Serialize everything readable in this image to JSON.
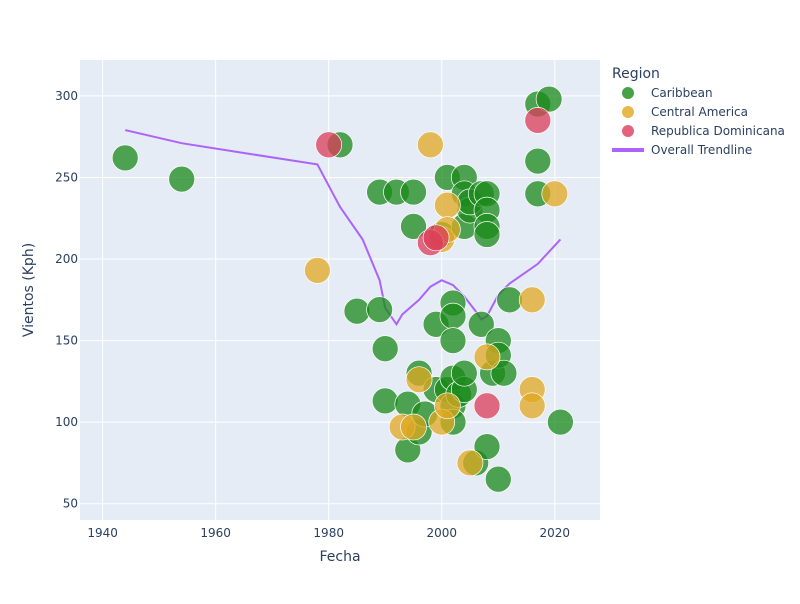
{
  "chart_data": {
    "type": "scatter",
    "xlabel": "Fecha",
    "ylabel": "Vientos (Kph)",
    "xlim": [
      1936,
      2028
    ],
    "ylim": [
      40,
      322
    ],
    "x_ticks": [
      1940,
      1960,
      1980,
      2000,
      2020
    ],
    "y_ticks": [
      50,
      100,
      150,
      200,
      250,
      300
    ],
    "grid": true,
    "legend": {
      "title": "Region",
      "placement": "top-right",
      "entries": [
        {
          "label": "Caribbean",
          "color": "#1a8a1a",
          "marker": "circle"
        },
        {
          "label": "Central America",
          "color": "#e0a820",
          "marker": "circle"
        },
        {
          "label": "Republica Dominicana",
          "color": "#dc3c5a",
          "marker": "circle"
        },
        {
          "label": "Overall Trendline",
          "color": "#ab63fa",
          "marker": "line"
        }
      ]
    },
    "series": [
      {
        "name": "Caribbean",
        "color": "#1a8a1a",
        "opacity": 0.75,
        "points": [
          [
            1944,
            262
          ],
          [
            1954,
            249
          ],
          [
            1982,
            270
          ],
          [
            1985,
            168
          ],
          [
            1989,
            241
          ],
          [
            1989,
            169
          ],
          [
            1990,
            145
          ],
          [
            1990,
            113
          ],
          [
            1992,
            241
          ],
          [
            1994,
            111
          ],
          [
            1994,
            83
          ],
          [
            1995,
            241
          ],
          [
            1995,
            220
          ],
          [
            1996,
            130
          ],
          [
            1996,
            94
          ],
          [
            1997,
            105
          ],
          [
            1999,
            120
          ],
          [
            1999,
            160
          ],
          [
            2000,
            215
          ],
          [
            2001,
            250
          ],
          [
            2001,
            120
          ],
          [
            2002,
            173
          ],
          [
            2002,
            165
          ],
          [
            2002,
            150
          ],
          [
            2002,
            127
          ],
          [
            2002,
            110
          ],
          [
            2002,
            100
          ],
          [
            2003,
            117
          ],
          [
            2004,
            250
          ],
          [
            2004,
            240
          ],
          [
            2004,
            220
          ],
          [
            2004,
            120
          ],
          [
            2004,
            130
          ],
          [
            2005,
            230
          ],
          [
            2005,
            235
          ],
          [
            2006,
            75
          ],
          [
            2007,
            240
          ],
          [
            2007,
            160
          ],
          [
            2008,
            240
          ],
          [
            2008,
            230
          ],
          [
            2008,
            220
          ],
          [
            2008,
            215
          ],
          [
            2008,
            85
          ],
          [
            2009,
            130
          ],
          [
            2010,
            150
          ],
          [
            2010,
            141
          ],
          [
            2010,
            65
          ],
          [
            2011,
            130
          ],
          [
            2012,
            175
          ],
          [
            2017,
            295
          ],
          [
            2017,
            260
          ],
          [
            2017,
            240
          ],
          [
            2019,
            298
          ],
          [
            2021,
            100
          ]
        ]
      },
      {
        "name": "Central America",
        "color": "#e0a820",
        "opacity": 0.75,
        "points": [
          [
            1978,
            193
          ],
          [
            1993,
            97
          ],
          [
            1995,
            97
          ],
          [
            1996,
            126
          ],
          [
            1998,
            270
          ],
          [
            2000,
            212
          ],
          [
            2000,
            100
          ],
          [
            2001,
            233
          ],
          [
            2001,
            218
          ],
          [
            2001,
            110
          ],
          [
            2005,
            75
          ],
          [
            2008,
            140
          ],
          [
            2016,
            175
          ],
          [
            2016,
            120
          ],
          [
            2016,
            110
          ],
          [
            2020,
            240
          ]
        ]
      },
      {
        "name": "Republica Dominicana",
        "color": "#dc3c5a",
        "opacity": 0.75,
        "points": [
          [
            1980,
            270
          ],
          [
            1998,
            210
          ],
          [
            1999,
            213
          ],
          [
            2008,
            110
          ],
          [
            2017,
            285
          ]
        ]
      }
    ],
    "trendline": {
      "name": "Overall Trendline",
      "color": "#ab63fa",
      "points": [
        [
          1944,
          279
        ],
        [
          1954,
          271
        ],
        [
          1965,
          265
        ],
        [
          1978,
          258
        ],
        [
          1982,
          232
        ],
        [
          1986,
          212
        ],
        [
          1989,
          187
        ],
        [
          1990,
          170
        ],
        [
          1992,
          160
        ],
        [
          1993,
          166
        ],
        [
          1996,
          175
        ],
        [
          1998,
          183
        ],
        [
          2000,
          187
        ],
        [
          2002,
          184
        ],
        [
          2004,
          177
        ],
        [
          2006,
          168
        ],
        [
          2007,
          163
        ],
        [
          2008,
          165
        ],
        [
          2010,
          178
        ],
        [
          2012,
          185
        ],
        [
          2017,
          197
        ],
        [
          2021,
          212
        ]
      ]
    }
  }
}
